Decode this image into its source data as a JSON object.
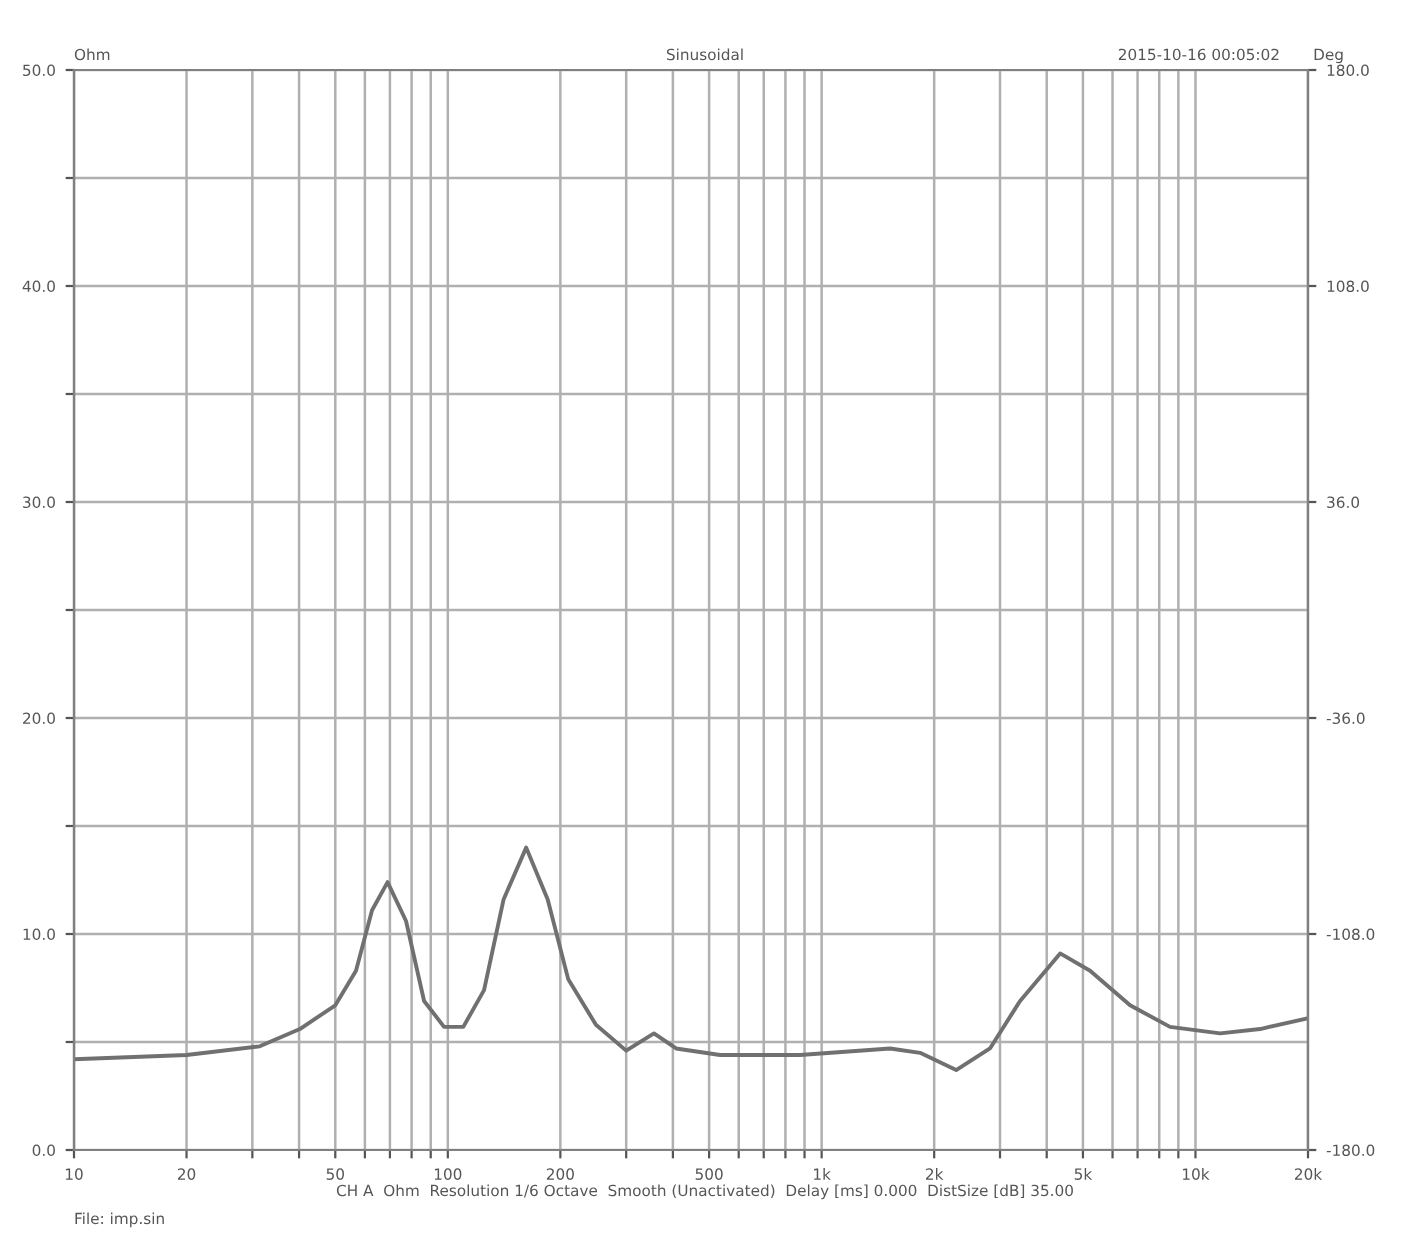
{
  "chart_data": {
    "type": "line",
    "title": "Sinusoidal",
    "ylabel": "Ohm",
    "y2label": "Deg",
    "annotations": [
      "2015-10-16 00:05:02",
      "CH A  Ohm  Resolution 1/6 Octave  Smooth (Unactivated)  Delay [ms] 0.000  DistSize [dB] 35.00",
      "File: imp.sin"
    ],
    "x": [
      10,
      20,
      31.4,
      40.2,
      50,
      56.8,
      62.7,
      69,
      77.3,
      86.4,
      97.7,
      110,
      125,
      141,
      162,
      185,
      210,
      249,
      300,
      356,
      408,
      535,
      875,
      1524,
      1834,
      2290,
      2820,
      3395,
      4345,
      5225,
      6685,
      8550,
      11640,
      14890,
      20000
    ],
    "series": [
      {
        "color": "#707070",
        "values": [
          4.2,
          4.4,
          4.8,
          5.6,
          6.7,
          8.3,
          11.1,
          12.4,
          10.6,
          6.9,
          5.7,
          5.7,
          7.4,
          11.6,
          14.0,
          11.6,
          7.9,
          5.8,
          4.6,
          5.4,
          4.7,
          4.4,
          4.4,
          4.7,
          4.5,
          3.7,
          4.7,
          6.9,
          9.1,
          8.3,
          6.7,
          5.7,
          5.4,
          5.6,
          6.1
        ]
      }
    ],
    "log": "x",
    "xlim": [
      10,
      20000
    ],
    "xticks": [
      10,
      20,
      {
        "value": 30,
        "label": null
      },
      {
        "value": 40,
        "label": null
      },
      50,
      {
        "value": 60,
        "label": null
      },
      {
        "value": 70,
        "label": null
      },
      {
        "value": 80,
        "label": null
      },
      {
        "value": 90,
        "label": null
      },
      100,
      200,
      {
        "value": 300,
        "label": null
      },
      {
        "value": 400,
        "label": null
      },
      500,
      {
        "value": 600,
        "label": null
      },
      {
        "value": 700,
        "label": null
      },
      {
        "value": 800,
        "label": null
      },
      {
        "value": 900,
        "label": null
      },
      {
        "value": 1000,
        "label": "1k"
      },
      {
        "value": 2000,
        "label": "2k"
      },
      {
        "value": 3000,
        "label": null
      },
      {
        "value": 4000,
        "label": null
      },
      {
        "value": 5000,
        "label": "5k"
      },
      {
        "value": 6000,
        "label": null
      },
      {
        "value": 7000,
        "label": null
      },
      {
        "value": 8000,
        "label": null
      },
      {
        "value": 9000,
        "label": null
      },
      {
        "value": 10000,
        "label": "10k"
      },
      {
        "value": 20000,
        "label": "20k"
      }
    ],
    "ylim": [
      0,
      50
    ],
    "yticks": [
      {
        "value": 0,
        "label": "0.0"
      },
      {
        "value": 5,
        "label": null
      },
      {
        "value": 10,
        "label": "10.0"
      },
      {
        "value": 15,
        "label": null
      },
      {
        "value": 20,
        "label": "20.0"
      },
      {
        "value": 25,
        "label": null
      },
      {
        "value": 30,
        "label": "30.0"
      },
      {
        "value": 35,
        "label": null
      },
      {
        "value": 40,
        "label": "40.0"
      },
      {
        "value": 45,
        "label": null
      },
      {
        "value": 50,
        "label": "50.0"
      }
    ],
    "y2lim": [
      -180,
      180
    ],
    "y2ticks": [
      {
        "value": -180,
        "label": "-180.0"
      },
      {
        "value": -108,
        "label": "-108.0"
      },
      {
        "value": -36,
        "label": "-36.0"
      },
      {
        "value": 36,
        "label": "36.0"
      },
      {
        "value": 108,
        "label": "108.0"
      },
      {
        "value": 180,
        "label": "180.0"
      }
    ],
    "grid": true,
    "marker": "none",
    "line_style": "solid"
  }
}
